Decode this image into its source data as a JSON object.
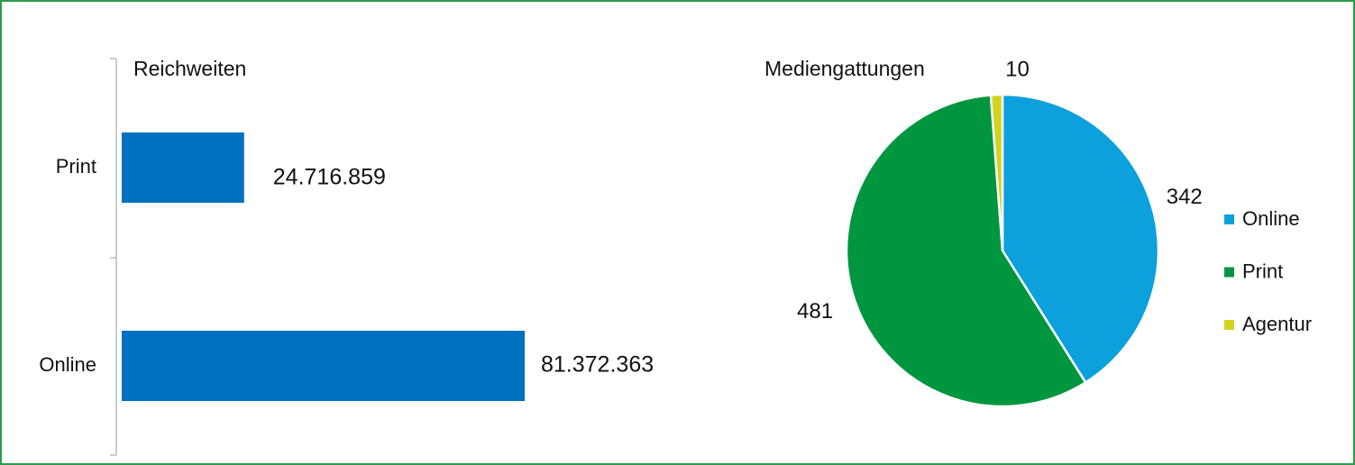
{
  "chart_data": [
    {
      "type": "hbar",
      "title": "Reichweiten",
      "categories": [
        "Print",
        "Online"
      ],
      "values": [
        24716859,
        81372363
      ],
      "value_labels": [
        "24.716.859",
        "81.372.363"
      ],
      "color": "#0070c0"
    },
    {
      "type": "pie",
      "title": "Mediengattungen",
      "categories": [
        "Online",
        "Print",
        "Agentur"
      ],
      "values": [
        342,
        481,
        10
      ],
      "colors": [
        "#0ca0dc",
        "#00963f",
        "#d2d41e"
      ],
      "legend": "right"
    }
  ]
}
